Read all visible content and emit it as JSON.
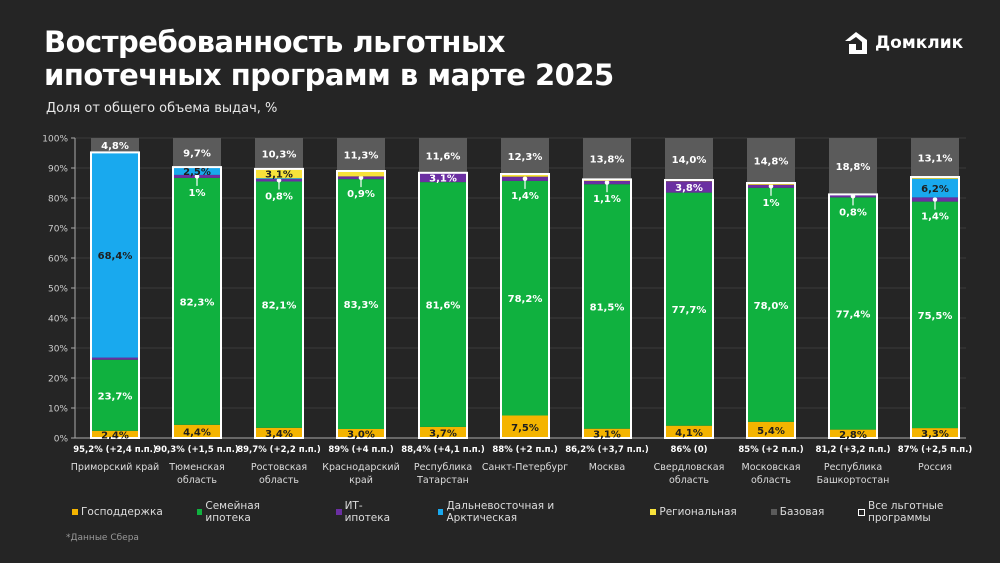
{
  "header": {
    "title_line1": "Востребованность льготных",
    "title_line2": "ипотечных программ в марте 2025",
    "subtitle": "Доля от общего объема выдач, %",
    "logo_text": "Домклик"
  },
  "footnote": "*Данные Сбера",
  "colors": {
    "gov": "#f4b400",
    "family": "#10b13f",
    "it": "#6b2fa2",
    "fareast": "#19a9ee",
    "regional": "#f7e23b",
    "base": "#5b5b5b",
    "background": "#252525"
  },
  "chart_data": {
    "type": "bar",
    "stacked": true,
    "title": "Востребованность льготных ипотечных программ в марте 2025",
    "ylabel": "Доля от общего объема выдач, %",
    "ylim": [
      0,
      100
    ],
    "yticks": [
      "0%",
      "10%",
      "20%",
      "30%",
      "40%",
      "50%",
      "60%",
      "70%",
      "80%",
      "90%",
      "100%"
    ],
    "grid": true,
    "legend_position": "bottom",
    "legend": [
      {
        "key": "gov",
        "label": "Господдержка"
      },
      {
        "key": "family",
        "label": "Семейная ипотека"
      },
      {
        "key": "it",
        "label": "ИТ-ипотека"
      },
      {
        "key": "fareast",
        "label": "Дальневосточная и Арктическая"
      },
      {
        "key": "regional",
        "label": "Региональная"
      },
      {
        "key": "base",
        "label": "Базовая"
      },
      {
        "key": "total",
        "label": "Все льготные программы"
      }
    ],
    "categories": [
      {
        "name": [
          "Приморский край"
        ],
        "total_label": "95,2% (+2,4 п.п.)",
        "values": {
          "gov": 2.4,
          "family": 23.7,
          "it": 0.7,
          "fareast": 68.4,
          "regional": 0,
          "base": 4.8
        },
        "labels": {
          "gov": "2,4%",
          "family": "23,7%",
          "fareast": "68,4%",
          "base": "4,8%"
        }
      },
      {
        "name": [
          "Тюменская",
          "область"
        ],
        "total_label": "90,3% (+1,5 п.п.)",
        "values": {
          "gov": 4.4,
          "family": 82.3,
          "it": 1.0,
          "fareast": 2.5,
          "regional": 0.1,
          "base": 9.7
        },
        "labels": {
          "gov": "4,4%",
          "family": "82,3%",
          "it": "1%",
          "fareast": "2,5%",
          "base": "9,7%"
        }
      },
      {
        "name": [
          "Ростовская",
          "область"
        ],
        "total_label": "89,7% (+2,2 п.п.)",
        "values": {
          "gov": 3.4,
          "family": 82.1,
          "it": 0.8,
          "fareast": 0.3,
          "regional": 3.1,
          "base": 10.3
        },
        "labels": {
          "gov": "3,4%",
          "family": "82,1%",
          "it": "0,8%",
          "regional": "3,1%",
          "base": "10,3%"
        }
      },
      {
        "name": [
          "Краснодарский",
          "край"
        ],
        "total_label": "89% (+4 п.п.)",
        "values": {
          "gov": 3.0,
          "family": 83.3,
          "it": 0.9,
          "fareast": 0,
          "regional": 1.8,
          "base": 11.3
        },
        "labels": {
          "gov": "3,0%",
          "family": "83,3%",
          "it": "0,9%",
          "base": "11,3%"
        }
      },
      {
        "name": [
          "Республика",
          "Татарстан"
        ],
        "total_label": "88,4% (+4,1 п.п.)",
        "values": {
          "gov": 3.7,
          "family": 81.6,
          "it": 3.1,
          "fareast": 0,
          "regional": 0,
          "base": 11.6
        },
        "labels": {
          "gov": "3,7%",
          "family": "81,6%",
          "it": "3,1%",
          "base": "11,6%"
        }
      },
      {
        "name": [
          "Санкт-Петербург"
        ],
        "total_label": "88% (+2 п.п.)",
        "values": {
          "gov": 7.5,
          "family": 78.2,
          "it": 1.4,
          "fareast": 0,
          "regional": 0.9,
          "base": 12.3
        },
        "labels": {
          "gov": "7,5%",
          "family": "78,2%",
          "it": "1,4%",
          "base": "12,3%"
        }
      },
      {
        "name": [
          "Москва"
        ],
        "total_label": "86,2% (+3,7 п.п.)",
        "values": {
          "gov": 3.1,
          "family": 81.5,
          "it": 1.1,
          "fareast": 0,
          "regional": 0.5,
          "base": 13.8
        },
        "labels": {
          "gov": "3,1%",
          "family": "81,5%",
          "it": "1,1%",
          "base": "13,8%"
        }
      },
      {
        "name": [
          "Свердловская",
          "область"
        ],
        "total_label": "86% (0)",
        "values": {
          "gov": 4.1,
          "family": 77.7,
          "it": 3.8,
          "fareast": 0,
          "regional": 0.4,
          "base": 14.0
        },
        "labels": {
          "gov": "4,1%",
          "family": "77,7%",
          "it": "3,8%",
          "base": "14,0%"
        }
      },
      {
        "name": [
          "Московская",
          "область"
        ],
        "total_label": "85% (+2 п.п.)",
        "values": {
          "gov": 5.4,
          "family": 78.0,
          "it": 1.0,
          "fareast": 0,
          "regional": 0.6,
          "base": 14.8
        },
        "labels": {
          "gov": "5,4%",
          "family": "78,0%",
          "it": "1%",
          "base": "14,8%"
        }
      },
      {
        "name": [
          "Республика",
          "Башкортостан"
        ],
        "total_label": "81,2 (+3,2 п.п.)",
        "values": {
          "gov": 2.8,
          "family": 77.4,
          "it": 0.8,
          "fareast": 0,
          "regional": 0.2,
          "base": 18.8
        },
        "labels": {
          "gov": "2,8%",
          "family": "77,4%",
          "it": "0,8%",
          "base": "18,8%"
        }
      },
      {
        "name": [
          "Россия"
        ],
        "total_label": "87% (+2,5 п.п.)",
        "values": {
          "gov": 3.3,
          "family": 75.5,
          "it": 1.4,
          "fareast": 6.2,
          "regional": 0.6,
          "base": 13.1
        },
        "labels": {
          "gov": "3,3%",
          "family": "75,5%",
          "it": "1,4%",
          "fareast": "6,2%",
          "base": "13,1%"
        }
      }
    ]
  }
}
